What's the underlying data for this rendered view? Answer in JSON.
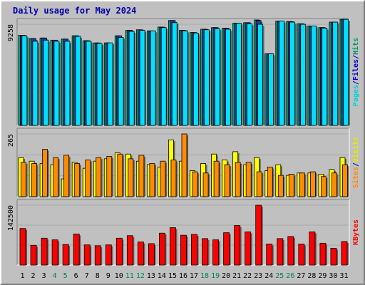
{
  "chart_data": {
    "type": "bar",
    "title": "Daily usage for May 2024",
    "categories": [
      "1",
      "2",
      "3",
      "4",
      "5",
      "6",
      "7",
      "8",
      "9",
      "10",
      "11",
      "12",
      "13",
      "14",
      "15",
      "16",
      "17",
      "18",
      "19",
      "20",
      "21",
      "22",
      "23",
      "24",
      "25",
      "26",
      "27",
      "28",
      "29",
      "30",
      "31"
    ],
    "weekend_days": [
      "4",
      "5",
      "11",
      "12",
      "18",
      "19",
      "25",
      "26"
    ],
    "panels": [
      {
        "name": "top",
        "ylim": [
          0,
          9258
        ],
        "tick_label": "9258",
        "axis_labels": [
          {
            "text": "Pages",
            "color": "#00D0E0"
          },
          {
            "text": "/",
            "color": "#0000CC"
          },
          {
            "text": "Files",
            "color": "#0000CC"
          },
          {
            "text": "/",
            "color": "#0000CC"
          },
          {
            "text": "Hits",
            "color": "#009966"
          }
        ],
        "series": [
          {
            "name": "Hits",
            "color": "#00AA77",
            "values": [
              8250,
              7950,
              8000,
              7800,
              7900,
              8200,
              7750,
              7550,
              7550,
              8200,
              8700,
              8750,
              8650,
              9000,
              9600,
              8700,
              8500,
              8800,
              8950,
              8900,
              9350,
              9400,
              9650,
              6550,
              9550,
              9500,
              9300,
              9100,
              8950,
              9450,
              9700
            ]
          },
          {
            "name": "Files",
            "color": "#1E3C9C",
            "values": [
              8250,
              7950,
              8000,
              7800,
              7900,
              8200,
              7750,
              7550,
              7550,
              8200,
              8700,
              8750,
              8650,
              9000,
              9600,
              8700,
              8500,
              8800,
              8950,
              8900,
              9350,
              9400,
              9600,
              6550,
              9550,
              9500,
              9300,
              9100,
              8950,
              9450,
              9700
            ]
          },
          {
            "name": "Pages",
            "color": "#00E0FF",
            "values": [
              8200,
              7700,
              7800,
              7700,
              7700,
              8150,
              7700,
              7500,
              7550,
              8050,
              8600,
              8700,
              8650,
              8950,
              9400,
              8650,
              8450,
              8750,
              8850,
              8800,
              9350,
              9300,
              9250,
              6550,
              9550,
              9450,
              9250,
              9100,
              8900,
              9450,
              9700
            ]
          }
        ]
      },
      {
        "name": "middle",
        "ylim": [
          0,
          265
        ],
        "tick_label": "265",
        "axis_labels": [
          {
            "text": "Sites",
            "color": "#FF8C00"
          },
          {
            "text": "/",
            "color": "#0000CC"
          },
          {
            "text": "Visits",
            "color": "#E8E800"
          }
        ],
        "series": [
          {
            "name": "Visits",
            "color": "#FFFF00",
            "values": [
              165,
              150,
              140,
              135,
              75,
              145,
              120,
              150,
              160,
              185,
              180,
              150,
              135,
              125,
              240,
              150,
              110,
              140,
              180,
              155,
              190,
              135,
              165,
              110,
              135,
              90,
              100,
              100,
              95,
              115,
              165
            ]
          },
          {
            "name": "Sites",
            "color": "#FF8C00",
            "values": [
              145,
              140,
              200,
              165,
              175,
              140,
              155,
              165,
              170,
              180,
              160,
              175,
              140,
              150,
              155,
              265,
              105,
              100,
              150,
              135,
              145,
              145,
              105,
              125,
              90,
              95,
              100,
              105,
              85,
              100,
              135
            ]
          }
        ]
      },
      {
        "name": "bottom",
        "ylim": [
          0,
          142500
        ],
        "tick_label": "142500",
        "axis_labels": [
          {
            "text": "KBytes",
            "color": "#FF0000"
          }
        ],
        "series": [
          {
            "name": "KBytes",
            "color": "#FF0000",
            "values": [
              87000,
              47000,
              64000,
              60000,
              49000,
              74000,
              48000,
              46000,
              48000,
              64000,
              70000,
              55000,
              51000,
              76000,
              89000,
              71000,
              73000,
              63000,
              60000,
              77000,
              94000,
              79000,
              142500,
              50000,
              63000,
              68000,
              50000,
              79000,
              52000,
              40000,
              56000
            ]
          }
        ]
      }
    ]
  }
}
